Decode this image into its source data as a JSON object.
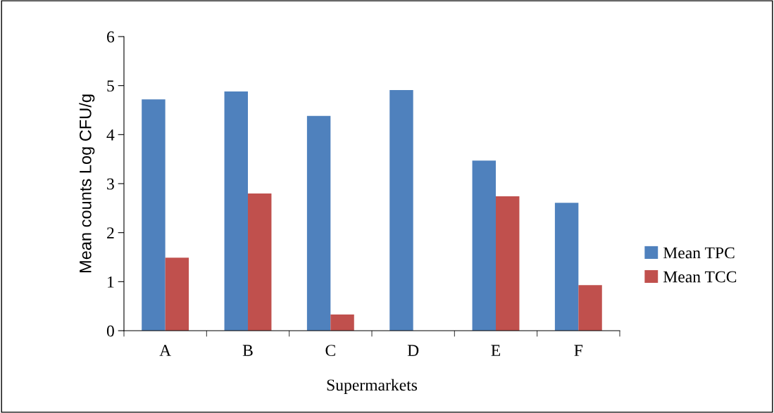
{
  "chart_data": {
    "type": "bar",
    "xlabel": "Supermarkets",
    "ylabel": "Mean counts Log CFU/g",
    "categories": [
      "A",
      "B",
      "C",
      "D",
      "E",
      "F"
    ],
    "series": [
      {
        "name": "Mean TPC",
        "color": "#4f81bd",
        "values": [
          4.72,
          4.88,
          4.38,
          4.91,
          3.47,
          2.61
        ]
      },
      {
        "name": "Mean TCC",
        "color": "#c0504d",
        "values": [
          1.49,
          2.8,
          0.33,
          0,
          2.74,
          0.93
        ]
      }
    ],
    "ylim": [
      0,
      6
    ],
    "yticks": [
      0,
      1,
      2,
      3,
      4,
      5,
      6
    ],
    "grid": false,
    "legend": "right"
  }
}
